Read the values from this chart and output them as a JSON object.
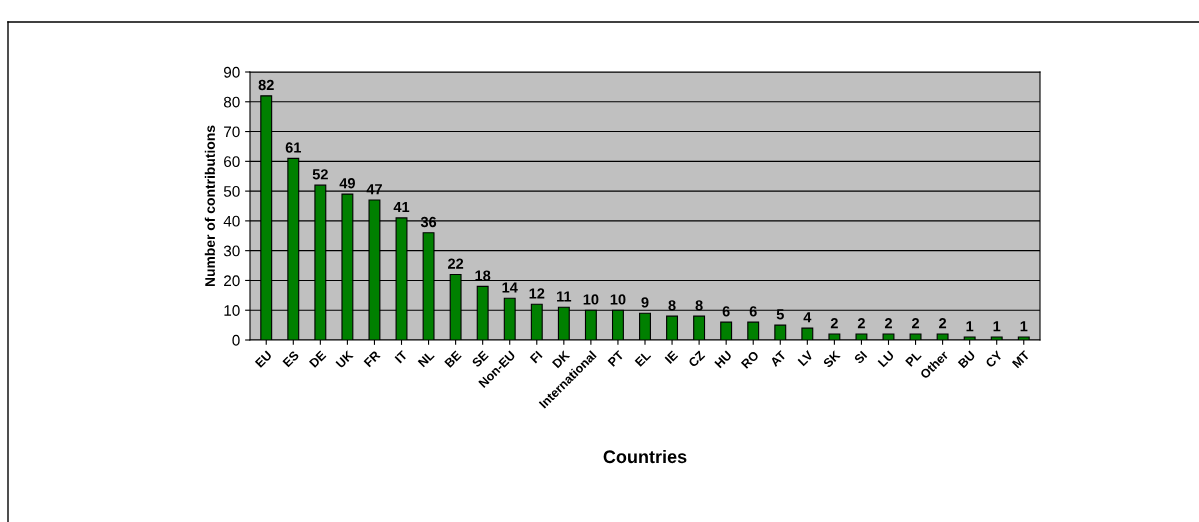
{
  "chart_data": {
    "type": "bar",
    "xlabel": "Countries",
    "ylabel": "Number of contributions",
    "categories": [
      "EU",
      "ES",
      "DE",
      "UK",
      "FR",
      "IT",
      "NL",
      "BE",
      "SE",
      "Non-EU",
      "FI",
      "DK",
      "International",
      "PT",
      "EL",
      "IE",
      "CZ",
      "HU",
      "RO",
      "AT",
      "LV",
      "SK",
      "SI",
      "LU",
      "PL",
      "Other",
      "BU",
      "CY",
      "MT"
    ],
    "values": [
      82,
      61,
      52,
      49,
      47,
      41,
      36,
      22,
      18,
      14,
      12,
      11,
      10,
      10,
      9,
      8,
      8,
      6,
      6,
      5,
      4,
      2,
      2,
      2,
      2,
      2,
      1,
      1,
      1
    ],
    "color": "#008000",
    "ylim": [
      0,
      90
    ],
    "yticks": [
      0,
      10,
      20,
      30,
      40,
      50,
      60,
      70,
      80,
      90
    ],
    "grid": "y",
    "data_labels": true
  }
}
